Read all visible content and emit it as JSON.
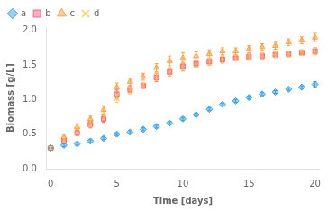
{
  "chart_data": {
    "type": "scatter",
    "xlabel": "Time [days]",
    "ylabel": "Biomass [g/L]",
    "xlim": [
      -0.3,
      20.3
    ],
    "ylim": [
      0,
      2.05
    ],
    "xticks": [
      0,
      5,
      10,
      15,
      20
    ],
    "yticks": [
      {
        "value": 0,
        "label": "0.0"
      },
      0.5,
      {
        "value": 1.0,
        "label": "1.0"
      },
      1.5,
      {
        "value": 2.0,
        "label": "2.0"
      }
    ],
    "grid": false,
    "legend": "upper left",
    "series": [
      {
        "name": "a",
        "marker": "diamond",
        "x": [
          0,
          1,
          2,
          3,
          4,
          5,
          6,
          7,
          8,
          9,
          10,
          11,
          12,
          13,
          14,
          15,
          16,
          17,
          18,
          19,
          20
        ],
        "values": [
          0.3,
          0.34,
          0.36,
          0.4,
          0.44,
          0.5,
          0.53,
          0.57,
          0.61,
          0.66,
          0.72,
          0.78,
          0.86,
          0.93,
          0.98,
          1.03,
          1.08,
          1.11,
          1.15,
          1.18,
          1.22
        ],
        "yerr": [
          0.02,
          0.02,
          0.02,
          0.02,
          0.02,
          0.02,
          0.02,
          0.02,
          0.02,
          0.02,
          0.02,
          0.02,
          0.02,
          0.02,
          0.02,
          0.02,
          0.02,
          0.02,
          0.02,
          0.02,
          0.04
        ]
      },
      {
        "name": "b",
        "marker": "square",
        "x": [
          0,
          1,
          2,
          3,
          4,
          5,
          6,
          7,
          8,
          9,
          10,
          11,
          12,
          13,
          14,
          15,
          16,
          17,
          18,
          19,
          20
        ],
        "values": [
          0.3,
          0.4,
          0.52,
          0.64,
          0.72,
          1.08,
          1.15,
          1.2,
          1.32,
          1.4,
          1.48,
          1.52,
          1.55,
          1.58,
          1.6,
          1.62,
          1.63,
          1.65,
          1.66,
          1.68,
          1.7
        ],
        "yerr": [
          0.02,
          0.03,
          0.04,
          0.05,
          0.05,
          0.06,
          0.05,
          0.04,
          0.06,
          0.06,
          0.06,
          0.05,
          0.05,
          0.05,
          0.04,
          0.04,
          0.04,
          0.04,
          0.04,
          0.04,
          0.05
        ]
      },
      {
        "name": "c",
        "marker": "triangle",
        "x": [
          0,
          1,
          2,
          3,
          4,
          5,
          6,
          7,
          8,
          9,
          10,
          11,
          12,
          13,
          14,
          15,
          16,
          17,
          18,
          19,
          20
        ],
        "values": [
          0.3,
          0.46,
          0.6,
          0.72,
          0.85,
          1.18,
          1.26,
          1.33,
          1.46,
          1.56,
          1.6,
          1.63,
          1.66,
          1.7,
          1.7,
          1.73,
          1.76,
          1.78,
          1.83,
          1.86,
          1.9
        ],
        "yerr": [
          0.02,
          0.04,
          0.05,
          0.05,
          0.06,
          0.06,
          0.05,
          0.05,
          0.06,
          0.07,
          0.08,
          0.06,
          0.06,
          0.05,
          0.05,
          0.05,
          0.05,
          0.05,
          0.05,
          0.05,
          0.06
        ]
      },
      {
        "name": "d",
        "marker": "x",
        "x": [
          0,
          1,
          2,
          3,
          4,
          5,
          6,
          7,
          8,
          9,
          10,
          11,
          12,
          13,
          14,
          15,
          16,
          17,
          18,
          19,
          20
        ],
        "values": [
          0.3,
          0.42,
          0.56,
          0.66,
          0.76,
          1.02,
          1.13,
          1.2,
          1.33,
          1.4,
          1.48,
          1.52,
          1.55,
          1.58,
          1.6,
          1.62,
          1.63,
          1.65,
          1.66,
          1.68,
          1.7
        ],
        "yerr": [
          0.02,
          0.03,
          0.04,
          0.05,
          0.05,
          0.06,
          0.05,
          0.04,
          0.06,
          0.06,
          0.07,
          0.05,
          0.05,
          0.05,
          0.04,
          0.04,
          0.04,
          0.04,
          0.04,
          0.04,
          0.05
        ]
      }
    ]
  }
}
